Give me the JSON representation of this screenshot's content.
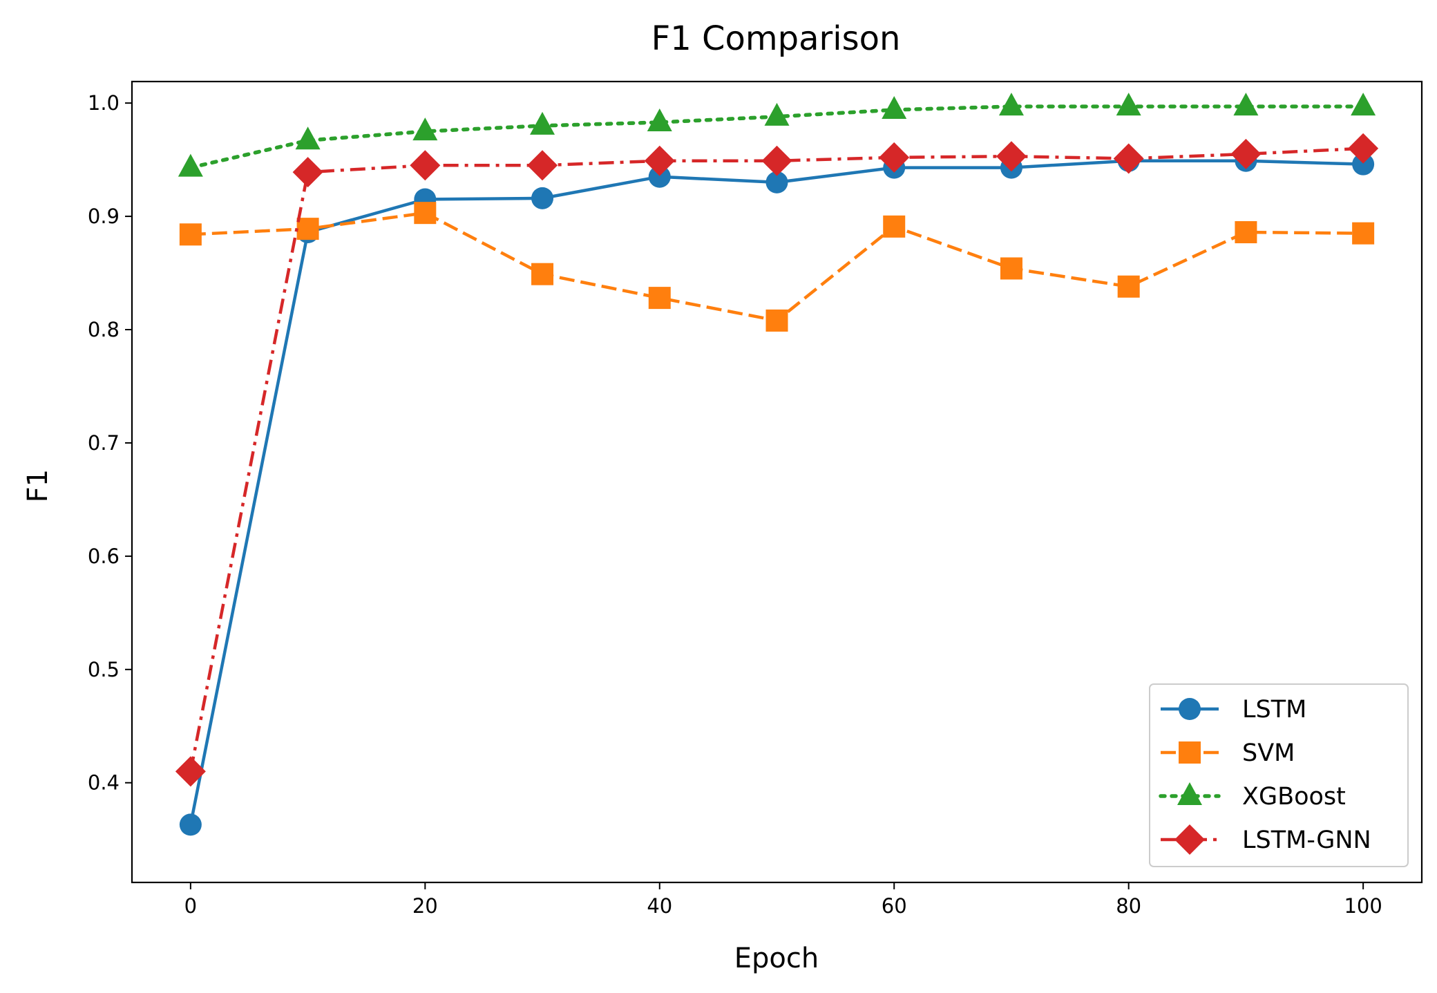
{
  "chart_data": {
    "type": "line",
    "title": "F1 Comparison",
    "xlabel": "Epoch",
    "ylabel": "F1",
    "xlim": [
      -5,
      105
    ],
    "ylim": [
      0.312,
      1.019
    ],
    "xticks": [
      0,
      20,
      40,
      60,
      80,
      100
    ],
    "yticks": [
      0.4,
      0.5,
      0.6,
      0.7,
      0.8,
      0.9,
      1.0
    ],
    "xtick_labels": [
      "0",
      "20",
      "40",
      "60",
      "80",
      "100"
    ],
    "ytick_labels": [
      "0.4",
      "0.5",
      "0.6",
      "0.7",
      "0.8",
      "0.9",
      "1.0"
    ],
    "x": [
      0,
      10,
      20,
      30,
      40,
      50,
      60,
      70,
      80,
      90,
      100
    ],
    "legend_position": "lower-right",
    "grid": false,
    "series": [
      {
        "name": "LSTM",
        "values": [
          0.363,
          0.886,
          0.915,
          0.916,
          0.935,
          0.93,
          0.943,
          0.943,
          0.949,
          0.949,
          0.946
        ],
        "color": "#1f77b4",
        "line_style": "solid",
        "marker": "circle"
      },
      {
        "name": "SVM",
        "values": [
          0.884,
          0.889,
          0.903,
          0.849,
          0.828,
          0.808,
          0.891,
          0.854,
          0.838,
          0.886,
          0.885
        ],
        "color": "#ff7f0e",
        "line_style": "dashed",
        "marker": "square"
      },
      {
        "name": "XGBoost",
        "values": [
          0.943,
          0.967,
          0.975,
          0.98,
          0.983,
          0.988,
          0.994,
          0.997,
          0.997,
          0.997,
          0.997
        ],
        "color": "#2ca02c",
        "line_style": "dotted",
        "marker": "triangle"
      },
      {
        "name": "LSTM-GNN",
        "values": [
          0.41,
          0.939,
          0.945,
          0.945,
          0.949,
          0.949,
          0.952,
          0.953,
          0.951,
          0.955,
          0.96
        ],
        "color": "#d62728",
        "line_style": "dashdot",
        "marker": "diamond"
      }
    ]
  }
}
